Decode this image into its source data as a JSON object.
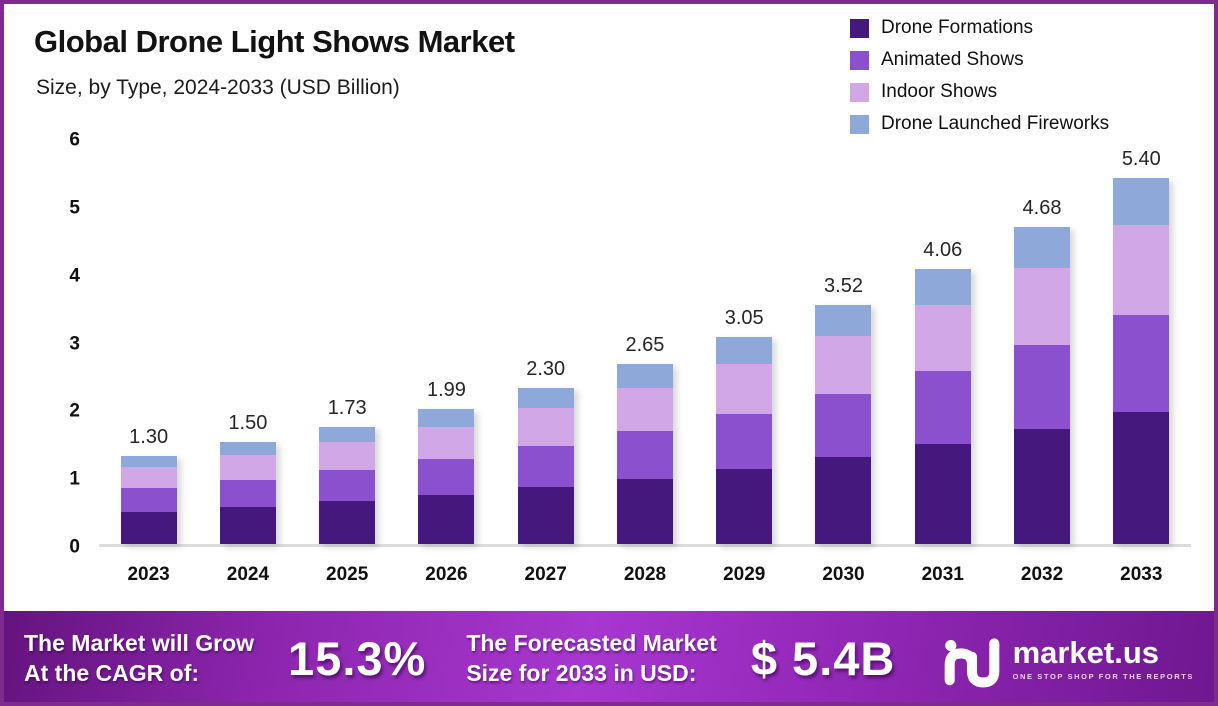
{
  "header": {
    "title": "Global Drone Light Shows Market",
    "subtitle": "Size, by Type, 2024-2033 (USD Billion)"
  },
  "legend": [
    {
      "label": "Drone Formations",
      "color": "#45187d"
    },
    {
      "label": "Animated Shows",
      "color": "#8a50cd"
    },
    {
      "label": "Indoor Shows",
      "color": "#d2a7e8"
    },
    {
      "label": "Drone Launched Fireworks",
      "color": "#8fa8da"
    }
  ],
  "chart_data": {
    "type": "bar",
    "stacked": true,
    "title": "Global Drone Light Shows Market",
    "subtitle": "Size, by Type, 2024-2033 (USD Billion)",
    "xlabel": "",
    "ylabel": "USD Billion",
    "ylim": [
      0,
      6
    ],
    "yticks": [
      0,
      1,
      2,
      3,
      4,
      5,
      6
    ],
    "grid": false,
    "legend_position": "top-right",
    "categories": [
      "2023",
      "2024",
      "2025",
      "2026",
      "2027",
      "2028",
      "2029",
      "2030",
      "2031",
      "2032",
      "2033"
    ],
    "series": [
      {
        "name": "Drone Formations",
        "color": "#45187d",
        "values": [
          0.47,
          0.55,
          0.63,
          0.72,
          0.84,
          0.96,
          1.11,
          1.28,
          1.47,
          1.7,
          1.95
        ]
      },
      {
        "name": "Animated Shows",
        "color": "#8a50cd",
        "values": [
          0.35,
          0.4,
          0.46,
          0.53,
          0.61,
          0.7,
          0.81,
          0.93,
          1.08,
          1.24,
          1.43
        ]
      },
      {
        "name": "Indoor Shows",
        "color": "#d2a7e8",
        "values": [
          0.32,
          0.36,
          0.42,
          0.48,
          0.55,
          0.64,
          0.73,
          0.85,
          0.98,
          1.13,
          1.32
        ]
      },
      {
        "name": "Drone Launched Fireworks",
        "color": "#8fa8da",
        "values": [
          0.16,
          0.19,
          0.22,
          0.26,
          0.3,
          0.35,
          0.4,
          0.46,
          0.53,
          0.61,
          0.7
        ]
      }
    ],
    "totals": [
      1.3,
      1.5,
      1.73,
      1.99,
      2.3,
      2.65,
      3.05,
      3.52,
      4.06,
      4.68,
      5.4
    ],
    "total_labels": [
      "1.30",
      "1.50",
      "1.73",
      "1.99",
      "2.30",
      "2.65",
      "3.05",
      "3.52",
      "4.06",
      "4.68",
      "5.40"
    ]
  },
  "footer": {
    "cagr_label_line1": "The Market will Grow",
    "cagr_label_line2": "At the CAGR of:",
    "cagr_value": "15.3%",
    "forecast_label_line1": "The Forecasted Market",
    "forecast_label_line2": "Size for 2033 in USD:",
    "forecast_value": "$ 5.4B",
    "brand_name": "market.us",
    "brand_tagline": "ONE STOP SHOP FOR THE REPORTS"
  },
  "colors": {
    "page_border": "#7e2a8e",
    "axis_baseline": "#dcdcdc",
    "banner_gradient": [
      "#64137e",
      "#a737cf",
      "#6f1790"
    ],
    "text_dark": "#111111",
    "banner_text": "#ffffff"
  }
}
